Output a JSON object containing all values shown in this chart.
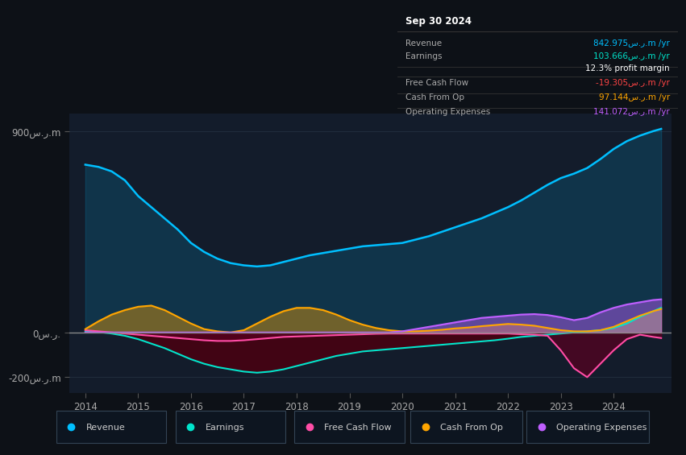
{
  "bg_color": "#0d1117",
  "plot_bg_color": "#131c2b",
  "xlim": [
    2013.7,
    2025.1
  ],
  "ylim": [
    -270,
    980
  ],
  "yticks": [
    -200,
    0,
    900
  ],
  "ytick_labels": [
    "-200س.ر.m",
    "0س.ر.",
    "900س.ر.m"
  ],
  "xticks": [
    2014,
    2015,
    2016,
    2017,
    2018,
    2019,
    2020,
    2021,
    2022,
    2023,
    2024
  ],
  "legend": [
    {
      "label": "Revenue",
      "color": "#00bfff"
    },
    {
      "label": "Earnings",
      "color": "#00e5cc"
    },
    {
      "label": "Free Cash Flow",
      "color": "#ff4da6"
    },
    {
      "label": "Cash From Op",
      "color": "#ffa500"
    },
    {
      "label": "Operating Expenses",
      "color": "#bf5fff"
    }
  ],
  "info_box": {
    "title": "Sep 30 2024",
    "rows": [
      {
        "label": "Revenue",
        "value": "842.975س.ر.m /yr",
        "color": "#00bfff"
      },
      {
        "label": "Earnings",
        "value": "103.666س.ر.m /yr",
        "color": "#00e5cc"
      },
      {
        "label": "",
        "value": "12.3% profit margin",
        "color": "#ffffff"
      },
      {
        "label": "Free Cash Flow",
        "value": "-19.305س.ر.m /yr",
        "color": "#ff4444"
      },
      {
        "label": "Cash From Op",
        "value": "97.144س.ر.m /yr",
        "color": "#ffa500"
      },
      {
        "label": "Operating Expenses",
        "value": "141.072س.ر.m /yr",
        "color": "#bf5fff"
      }
    ]
  },
  "series": {
    "years": [
      2014.0,
      2014.25,
      2014.5,
      2014.75,
      2015.0,
      2015.25,
      2015.5,
      2015.75,
      2016.0,
      2016.25,
      2016.5,
      2016.75,
      2017.0,
      2017.25,
      2017.5,
      2017.75,
      2018.0,
      2018.25,
      2018.5,
      2018.75,
      2019.0,
      2019.25,
      2019.5,
      2019.75,
      2020.0,
      2020.25,
      2020.5,
      2020.75,
      2021.0,
      2021.25,
      2021.5,
      2021.75,
      2022.0,
      2022.25,
      2022.5,
      2022.75,
      2023.0,
      2023.25,
      2023.5,
      2023.75,
      2024.0,
      2024.25,
      2024.5,
      2024.75,
      2024.9
    ],
    "revenue": [
      750,
      740,
      720,
      680,
      610,
      560,
      510,
      460,
      400,
      360,
      330,
      310,
      300,
      295,
      300,
      315,
      330,
      345,
      355,
      365,
      375,
      385,
      390,
      395,
      400,
      415,
      430,
      450,
      470,
      490,
      510,
      535,
      560,
      590,
      625,
      660,
      690,
      710,
      735,
      775,
      820,
      855,
      880,
      900,
      910
    ],
    "earnings": [
      5,
      2,
      -5,
      -15,
      -30,
      -50,
      -70,
      -95,
      -120,
      -140,
      -155,
      -165,
      -175,
      -180,
      -175,
      -165,
      -150,
      -135,
      -120,
      -105,
      -95,
      -85,
      -80,
      -75,
      -70,
      -65,
      -60,
      -55,
      -50,
      -45,
      -40,
      -35,
      -28,
      -20,
      -15,
      -10,
      -5,
      0,
      5,
      10,
      20,
      40,
      70,
      95,
      110
    ],
    "free_cash_flow": [
      10,
      5,
      0,
      -5,
      -10,
      -15,
      -20,
      -25,
      -30,
      -35,
      -38,
      -38,
      -35,
      -30,
      -25,
      -20,
      -18,
      -16,
      -14,
      -12,
      -10,
      -8,
      -6,
      -5,
      -5,
      -5,
      -5,
      -5,
      -5,
      -5,
      -5,
      -5,
      -5,
      -8,
      -10,
      -15,
      -80,
      -160,
      -200,
      -140,
      -80,
      -30,
      -10,
      -20,
      -25
    ],
    "cash_from_op": [
      15,
      50,
      80,
      100,
      115,
      120,
      100,
      70,
      40,
      15,
      5,
      0,
      10,
      40,
      70,
      95,
      110,
      110,
      100,
      80,
      55,
      35,
      20,
      10,
      5,
      5,
      8,
      12,
      18,
      22,
      28,
      33,
      38,
      35,
      30,
      20,
      10,
      5,
      5,
      10,
      25,
      50,
      75,
      95,
      105
    ],
    "operating_expenses": [
      0,
      0,
      0,
      0,
      0,
      0,
      0,
      0,
      0,
      0,
      0,
      0,
      0,
      0,
      0,
      0,
      0,
      0,
      0,
      0,
      0,
      0,
      0,
      0,
      5,
      15,
      25,
      35,
      45,
      55,
      65,
      70,
      75,
      80,
      82,
      78,
      68,
      55,
      65,
      90,
      110,
      125,
      135,
      145,
      148
    ]
  }
}
